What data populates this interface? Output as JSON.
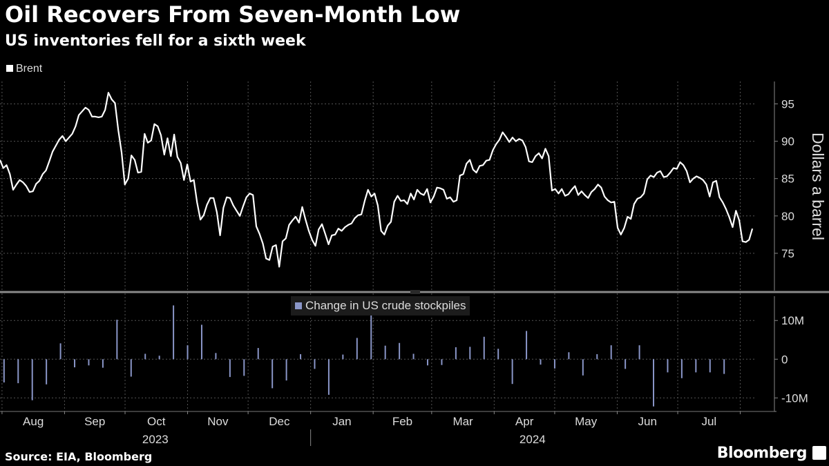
{
  "header": {
    "title": "Oil Recovers From Seven-Month Low",
    "subtitle": "US inventories fell for a sixth week"
  },
  "footer": {
    "source": "Source: EIA, Bloomberg",
    "brand": "Bloomberg"
  },
  "colors": {
    "background": "#000000",
    "price_line": "#ffffff",
    "bars": "#8a96c8",
    "grid": "#555555"
  },
  "chart_data": [
    {
      "type": "line",
      "title": "Oil Recovers From Seven-Month Low",
      "legend": "Brent",
      "ylabel": "Dollars a barrel",
      "ylim": [
        70,
        98
      ],
      "yticks": [
        75,
        80,
        85,
        90,
        95
      ],
      "grid": true,
      "x_start": "2023-07-31",
      "x_end": "2024-08-08",
      "values": [
        87.5,
        86.4,
        86.8,
        85.6,
        83.5,
        84.2,
        84.8,
        84.5,
        84.0,
        83.2,
        83.3,
        84.3,
        84.7,
        85.6,
        86.1,
        87.3,
        88.6,
        89.4,
        90.2,
        90.7,
        90.0,
        90.5,
        91.0,
        92.0,
        93.5,
        94.0,
        94.5,
        94.2,
        93.3,
        93.3,
        93.2,
        93.3,
        94.2,
        96.5,
        95.6,
        95.1,
        91.5,
        88.5,
        84.2,
        85.0,
        88.1,
        87.5,
        85.8,
        85.9,
        91.0,
        89.8,
        90.1,
        92.3,
        92.0,
        90.8,
        88.2,
        90.4,
        88.0,
        90.9,
        87.9,
        87.1,
        84.8,
        86.9,
        84.6,
        84.8,
        81.8,
        79.5,
        80.1,
        81.5,
        82.4,
        82.4,
        80.5,
        77.4,
        81.1,
        82.5,
        82.4,
        81.4,
        80.7,
        80.0,
        81.3,
        82.5,
        83.0,
        82.8,
        78.6,
        77.6,
        76.3,
        74.3,
        74.1,
        75.9,
        76.1,
        73.2,
        76.6,
        77.0,
        78.8,
        79.4,
        79.9,
        79.1,
        81.2,
        79.5,
        78.0,
        76.8,
        76.0,
        78.2,
        78.9,
        77.6,
        76.2,
        77.4,
        77.5,
        78.3,
        78.0,
        78.5,
        78.8,
        79.0,
        79.7,
        80.1,
        80.2,
        82.0,
        83.5,
        82.6,
        83.0,
        81.4,
        78.0,
        77.5,
        78.7,
        79.2,
        81.9,
        82.7,
        82.0,
        82.1,
        81.6,
        83.0,
        82.2,
        83.5,
        83.0,
        82.8,
        83.6,
        81.8,
        82.6,
        83.8,
        83.7,
        83.5,
        82.3,
        82.5,
        81.9,
        82.1,
        85.4,
        85.6,
        87.0,
        87.5,
        86.2,
        85.8,
        86.7,
        86.8,
        87.4,
        87.5,
        88.8,
        89.6,
        90.2,
        91.2,
        90.6,
        89.9,
        90.5,
        90.0,
        90.3,
        90.1,
        89.2,
        87.3,
        87.2,
        88.0,
        88.4,
        87.7,
        89.0,
        88.0,
        83.4,
        83.6,
        83.0,
        83.6,
        82.7,
        82.9,
        83.5,
        84.0,
        82.8,
        83.3,
        82.8,
        82.4,
        83.2,
        83.6,
        84.2,
        83.8,
        82.6,
        82.1,
        81.8,
        81.9,
        78.4,
        77.5,
        78.4,
        79.9,
        79.6,
        81.6,
        82.3,
        82.5,
        83.0,
        84.9,
        85.4,
        85.2,
        85.8,
        86.0,
        85.2,
        85.3,
        85.8,
        86.4,
        86.3,
        87.2,
        86.8,
        86.0,
        84.5,
        85.0,
        85.3,
        85.1,
        84.8,
        84.2,
        82.6,
        84.5,
        84.7,
        82.5,
        81.8,
        80.9,
        79.8,
        78.5,
        80.7,
        79.4,
        76.6,
        76.5,
        76.8,
        78.3
      ]
    },
    {
      "type": "bar",
      "legend": "Change in US crude stockpiles",
      "ylim": [
        -13.5,
        17
      ],
      "yticks": [
        10,
        0,
        -10
      ],
      "ytick_labels": [
        "10M",
        "0",
        "-10M"
      ],
      "x_start": "2023-08-02",
      "x_step_days": 7,
      "values": [
        -6.0,
        -6.2,
        -10.6,
        -6.5,
        4.1,
        -2.1,
        -1.6,
        -2.2,
        10.2,
        -4.5,
        1.4,
        0.9,
        13.9,
        3.6,
        8.9,
        1.6,
        -4.6,
        -4.3,
        2.9,
        -7.5,
        -5.5,
        1.3,
        -2.5,
        -9.2,
        1.2,
        5.5,
        12.0,
        3.5,
        4.2,
        1.4,
        -1.6,
        -1.5,
        3.1,
        3.2,
        5.8,
        2.7,
        -6.4,
        7.3,
        -1.4,
        -2.4,
        1.8,
        -4.2,
        1.3,
        3.6,
        -2.5,
        3.6,
        -12.2,
        -3.4,
        -4.9,
        -3.4,
        -3.4,
        -3.8
      ]
    }
  ],
  "x_axis": {
    "months": [
      "Aug",
      "Sep",
      "Oct",
      "Nov",
      "Dec",
      "Jan",
      "Feb",
      "Mar",
      "Apr",
      "May",
      "Jun",
      "Jul"
    ],
    "years": [
      "2023",
      "2024"
    ]
  }
}
